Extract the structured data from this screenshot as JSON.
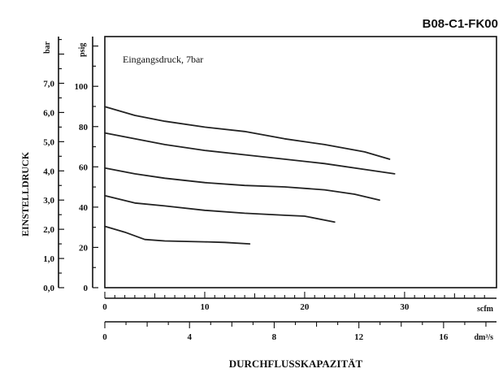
{
  "figure_code": "B08-C1-FK00",
  "chart_data": {
    "type": "line",
    "annotation": "Eingangsdruck, 7bar",
    "ylabel": "EINSTELLDRUCK",
    "xlabel": "DURCHFLUSSKAPAZITÄT",
    "y_bar": {
      "unit": "bar",
      "ticks": [
        "0,0",
        "1,0",
        "2,0",
        "3,0",
        "4,0",
        "5,0",
        "6,0",
        "7,0"
      ],
      "range": [
        0,
        8.6
      ]
    },
    "y_psig": {
      "unit": "psig",
      "ticks": [
        "0",
        "20",
        "40",
        "60",
        "80",
        "100"
      ],
      "range": [
        0,
        124.7
      ]
    },
    "x_scfm": {
      "unit": "scfm",
      "ticks": [
        "0",
        "10",
        "20",
        "30"
      ],
      "range": [
        0,
        39.2
      ]
    },
    "x_dm3s": {
      "unit": "dm³/s",
      "ticks": [
        "0",
        "4",
        "8",
        "12",
        "16"
      ],
      "range": [
        0,
        18.5
      ]
    },
    "series": [
      {
        "points": [
          [
            0,
            6.2
          ],
          [
            3,
            5.9
          ],
          [
            6,
            5.7
          ],
          [
            10,
            5.5
          ],
          [
            14,
            5.35
          ],
          [
            18,
            5.1
          ],
          [
            22,
            4.9
          ],
          [
            26,
            4.65
          ],
          [
            28.5,
            4.4
          ]
        ]
      },
      {
        "points": [
          [
            0,
            5.3
          ],
          [
            3,
            5.1
          ],
          [
            6,
            4.9
          ],
          [
            10,
            4.7
          ],
          [
            14,
            4.55
          ],
          [
            18,
            4.4
          ],
          [
            22,
            4.25
          ],
          [
            26,
            4.05
          ],
          [
            29,
            3.9
          ]
        ]
      },
      {
        "points": [
          [
            0,
            4.1
          ],
          [
            3,
            3.9
          ],
          [
            6,
            3.75
          ],
          [
            10,
            3.6
          ],
          [
            14,
            3.5
          ],
          [
            18,
            3.45
          ],
          [
            22,
            3.35
          ],
          [
            25,
            3.2
          ],
          [
            27.5,
            3.0
          ]
        ]
      },
      {
        "points": [
          [
            0,
            3.15
          ],
          [
            3,
            2.9
          ],
          [
            6,
            2.8
          ],
          [
            10,
            2.65
          ],
          [
            14,
            2.55
          ],
          [
            18,
            2.48
          ],
          [
            20,
            2.45
          ],
          [
            23,
            2.25
          ]
        ]
      },
      {
        "points": [
          [
            0,
            2.1
          ],
          [
            2,
            1.9
          ],
          [
            4,
            1.65
          ],
          [
            6,
            1.6
          ],
          [
            10,
            1.57
          ],
          [
            12,
            1.55
          ],
          [
            14.5,
            1.5
          ]
        ]
      }
    ]
  }
}
